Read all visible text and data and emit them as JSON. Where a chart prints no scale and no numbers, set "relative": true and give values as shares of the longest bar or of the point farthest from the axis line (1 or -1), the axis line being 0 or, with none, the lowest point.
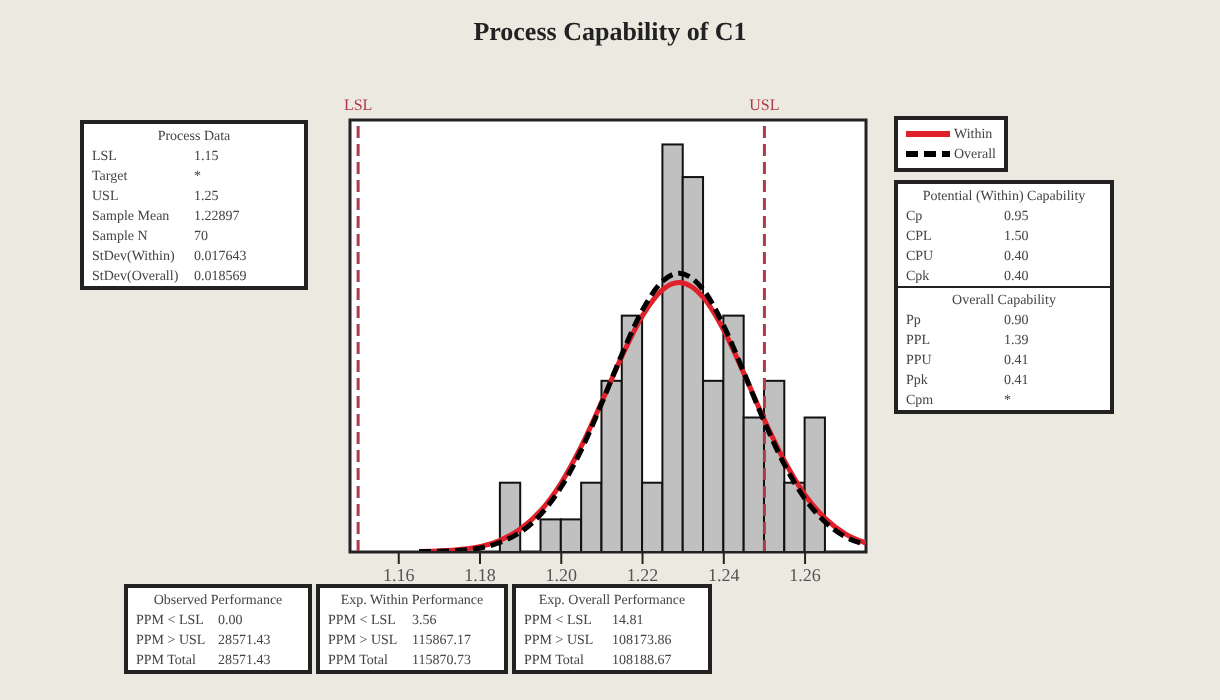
{
  "chart_data": {
    "type": "histogram",
    "title": "Process Capability of C1",
    "relative": true,
    "bins": [
      1.185,
      1.19,
      1.195,
      1.2,
      1.205,
      1.21,
      1.215,
      1.22,
      1.225,
      1.23,
      1.235,
      1.24,
      1.245,
      1.25,
      1.255,
      1.26,
      1.265
    ],
    "values": [
      0.17,
      0,
      0.08,
      0.08,
      0.17,
      0.42,
      0.58,
      0.17,
      1,
      0.92,
      0.42,
      0.58,
      0.33,
      0.42,
      0.17,
      0.33
    ],
    "color": "#c0c0c0",
    "xlim": [
      1.148,
      1.275
    ],
    "xticks": [
      1.16,
      1.18,
      {
        "value": 1.2,
        "label": "1.20"
      },
      1.22,
      1.24,
      1.26
    ],
    "series": [
      {
        "name": "Within",
        "type": "line",
        "color": "#e0202a",
        "line_style": "solid",
        "x": [
          1.165,
          1.175,
          1.185,
          1.19,
          1.195,
          1.2,
          1.205,
          1.21,
          1.215,
          1.22,
          1.225,
          1.229,
          1.235,
          1.24,
          1.245,
          1.25,
          1.255,
          1.26,
          1.265,
          1.27,
          1.275
        ],
        "values": [
          0.001,
          0.006,
          0.029,
          0.057,
          0.102,
          0.17,
          0.261,
          0.369,
          0.482,
          0.58,
          0.644,
          0.661,
          0.624,
          0.544,
          0.437,
          0.324,
          0.222,
          0.14,
          0.082,
          0.044,
          0.022
        ]
      },
      {
        "name": "Overall",
        "type": "line",
        "color": "#000000",
        "line_style": "dashed",
        "x": [
          1.165,
          1.175,
          1.185,
          1.19,
          1.195,
          1.2,
          1.205,
          1.21,
          1.215,
          1.22,
          1.225,
          1.229,
          1.235,
          1.24,
          1.245,
          1.25,
          1.255,
          1.26,
          1.265,
          1.27,
          1.275
        ],
        "values": [
          0.001,
          0.004,
          0.024,
          0.049,
          0.093,
          0.16,
          0.252,
          0.366,
          0.487,
          0.594,
          0.665,
          0.684,
          0.643,
          0.555,
          0.439,
          0.319,
          0.213,
          0.13,
          0.073,
          0.037,
          0.018
        ]
      }
    ],
    "ref_lines": [
      {
        "axis": "x",
        "value": 1.15,
        "label": "LSL",
        "color": "#b03a48",
        "line_style": "dashed"
      },
      {
        "axis": "x",
        "value": 1.25,
        "label": "USL",
        "color": "#b03a48",
        "line_style": "dashed"
      }
    ],
    "legend": "top right",
    "marker": "none",
    "annotations": [
      "Process Data",
      "LSL 1.15",
      "Target *",
      "USL 1.25",
      "Sample Mean 1.22897",
      "Sample N 70",
      "StDev(Within) 0.017643",
      "StDev(Overall) 0.018569",
      "Potential (Within) Capability",
      "Cp 0.95",
      "CPL 1.50",
      "CPU 0.40",
      "Cpk 0.40",
      "Overall Capability",
      "Pp 0.90",
      "PPL 1.39",
      "PPU 0.41",
      "Ppk 0.41",
      "Cpm *",
      "Observed Performance",
      "PPM < LSL 0.00",
      "PPM > USL 28571.43",
      "PPM Total 28571.43",
      "Exp. Within Performance",
      "PPM < LSL 3.56",
      "PPM > USL 115867.17",
      "PPM Total 115870.73",
      "Exp. Overall Performance",
      "PPM < LSL 14.81",
      "PPM > USL 108173.86",
      "PPM Total 108188.67"
    ]
  }
}
